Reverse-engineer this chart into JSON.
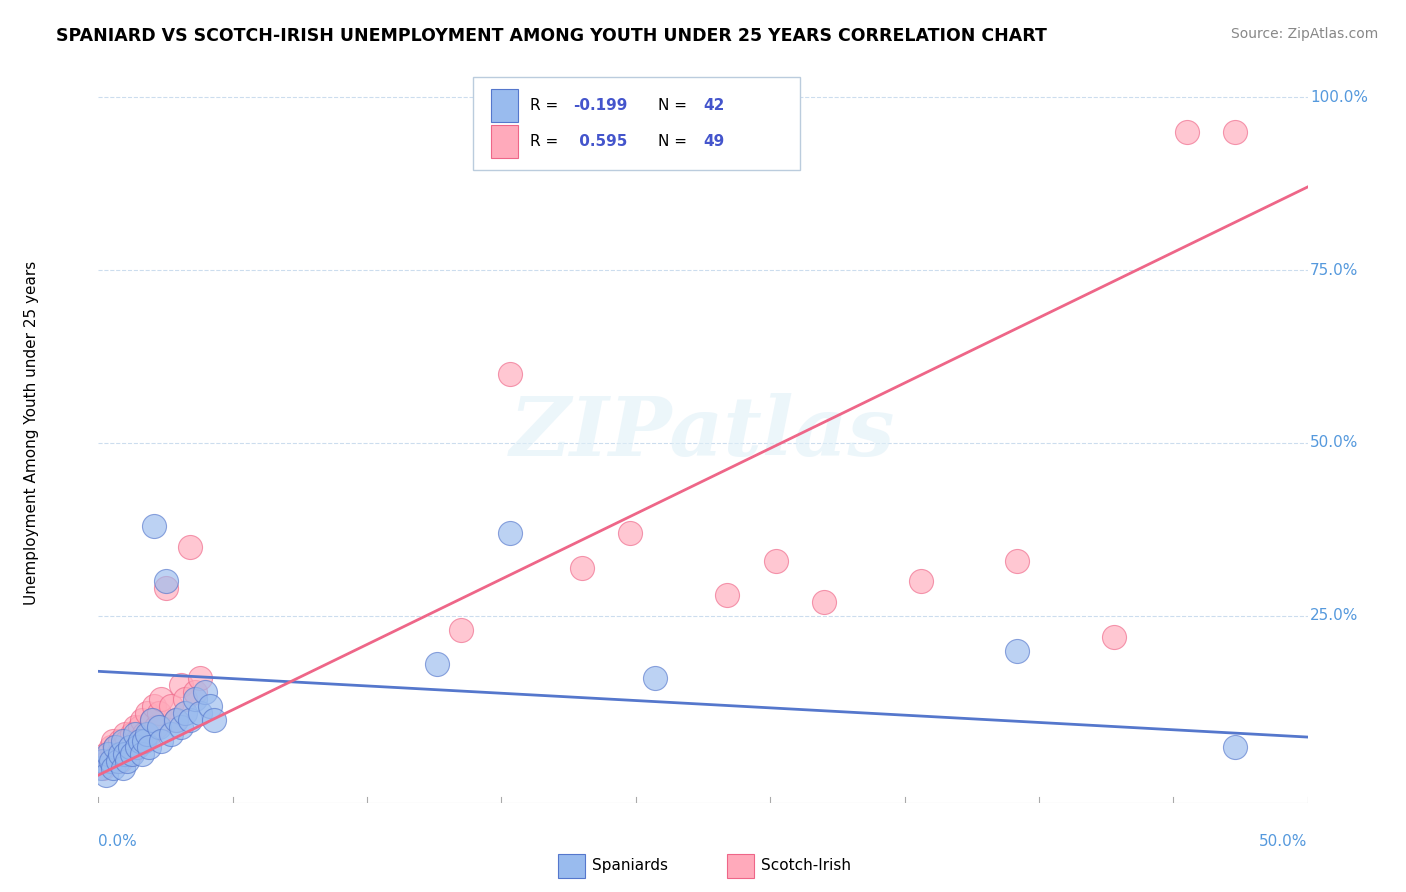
{
  "title": "SPANIARD VS SCOTCH-IRISH UNEMPLOYMENT AMONG YOUTH UNDER 25 YEARS CORRELATION CHART",
  "source": "Source: ZipAtlas.com",
  "ylabel": "Unemployment Among Youth under 25 years",
  "ytick_labels": [
    "100.0%",
    "75.0%",
    "50.0%",
    "25.0%"
  ],
  "ytick_values": [
    1.0,
    0.75,
    0.5,
    0.25
  ],
  "xlim": [
    0.0,
    0.5
  ],
  "ylim": [
    -0.02,
    1.05
  ],
  "color_blue": "#99BBEE",
  "color_pink": "#FFAABB",
  "color_blue_line": "#5577CC",
  "color_pink_line": "#EE6688",
  "color_r_value": "#4455CC",
  "watermark": "ZIPatlas",
  "blue_line_y0": 0.17,
  "blue_line_y1": 0.075,
  "pink_line_y0": 0.02,
  "pink_line_y1": 0.87,
  "spaniards_x": [
    0.001,
    0.002,
    0.003,
    0.004,
    0.005,
    0.006,
    0.007,
    0.008,
    0.009,
    0.01,
    0.01,
    0.011,
    0.012,
    0.013,
    0.014,
    0.015,
    0.016,
    0.017,
    0.018,
    0.019,
    0.02,
    0.021,
    0.022,
    0.023,
    0.025,
    0.026,
    0.028,
    0.03,
    0.032,
    0.034,
    0.036,
    0.038,
    0.04,
    0.042,
    0.044,
    0.046,
    0.048,
    0.14,
    0.17,
    0.23,
    0.38,
    0.47
  ],
  "spaniards_y": [
    0.03,
    0.04,
    0.02,
    0.05,
    0.04,
    0.03,
    0.06,
    0.04,
    0.05,
    0.03,
    0.07,
    0.05,
    0.04,
    0.06,
    0.05,
    0.08,
    0.06,
    0.07,
    0.05,
    0.07,
    0.08,
    0.06,
    0.1,
    0.38,
    0.09,
    0.07,
    0.3,
    0.08,
    0.1,
    0.09,
    0.11,
    0.1,
    0.13,
    0.11,
    0.14,
    0.12,
    0.1,
    0.18,
    0.37,
    0.16,
    0.2,
    0.06
  ],
  "scotchirish_x": [
    0.001,
    0.002,
    0.003,
    0.004,
    0.005,
    0.006,
    0.006,
    0.007,
    0.008,
    0.009,
    0.009,
    0.01,
    0.011,
    0.012,
    0.013,
    0.014,
    0.015,
    0.015,
    0.016,
    0.017,
    0.018,
    0.019,
    0.02,
    0.021,
    0.022,
    0.023,
    0.024,
    0.025,
    0.026,
    0.028,
    0.03,
    0.032,
    0.034,
    0.036,
    0.038,
    0.04,
    0.042,
    0.15,
    0.17,
    0.2,
    0.22,
    0.26,
    0.28,
    0.3,
    0.34,
    0.38,
    0.42,
    0.45,
    0.47
  ],
  "scotchirish_y": [
    0.04,
    0.03,
    0.05,
    0.04,
    0.06,
    0.05,
    0.07,
    0.06,
    0.05,
    0.07,
    0.04,
    0.06,
    0.08,
    0.07,
    0.05,
    0.08,
    0.06,
    0.09,
    0.07,
    0.09,
    0.1,
    0.08,
    0.11,
    0.08,
    0.1,
    0.12,
    0.09,
    0.11,
    0.13,
    0.29,
    0.12,
    0.1,
    0.15,
    0.13,
    0.35,
    0.14,
    0.16,
    0.23,
    0.6,
    0.32,
    0.37,
    0.28,
    0.33,
    0.27,
    0.3,
    0.33,
    0.22,
    0.95,
    0.95
  ]
}
